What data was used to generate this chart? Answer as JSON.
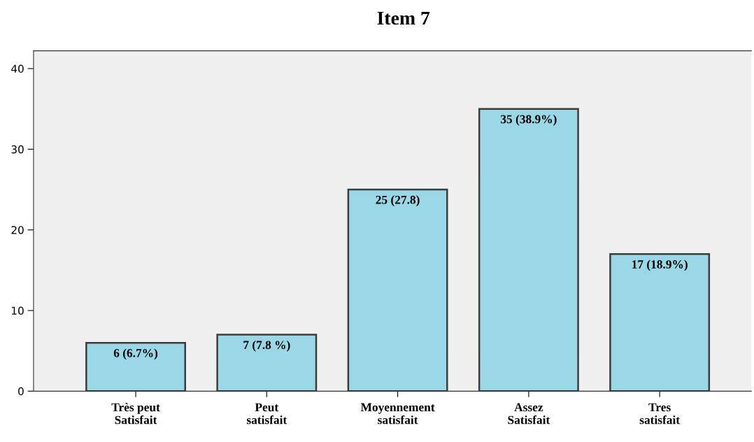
{
  "chart_data": {
    "type": "bar",
    "title": "Item 7",
    "categories": [
      "Très peut\nSatisfait",
      "Peut\nsatisfait",
      "Moyennement\nsatisfait",
      "Assez\nSatisfait",
      "Tres\nsatisfait"
    ],
    "values": [
      6,
      7,
      25,
      35,
      17
    ],
    "value_labels": [
      "6 (6.7%)",
      "7 (7.8 %)",
      "25 (27.8)",
      "35 (38.9%)",
      "17 (18.9%)"
    ],
    "color": "#9ad8e8",
    "ylim": [
      0,
      42.2
    ],
    "yticks": [
      0,
      10,
      20,
      30,
      40
    ],
    "grid": false
  }
}
